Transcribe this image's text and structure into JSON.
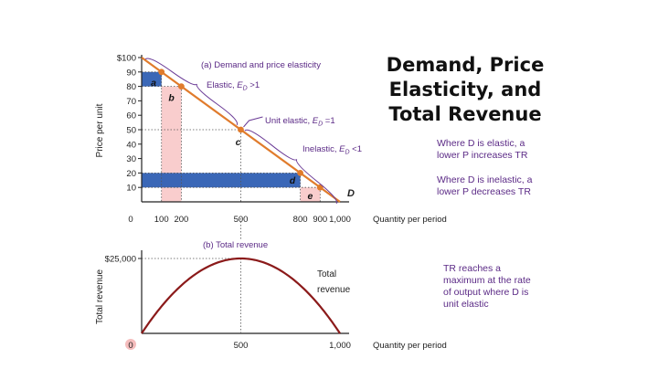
{
  "title_lines": [
    "Demand, Price",
    "Elasticity, and",
    "Total Revenue"
  ],
  "notes": {
    "elastic": [
      "Where D is elastic, a",
      "lower P increases TR"
    ],
    "inelastic": [
      "Where D is inelastic, a",
      "lower P decreases TR"
    ],
    "tr_max": [
      "TR reaches a",
      "maximum at the rate",
      "of output where D is",
      "unit elastic"
    ]
  },
  "colors": {
    "demand_line": "#e07b2c",
    "total_revenue_curve": "#8b1a1a",
    "revenue_rect_blue": "#2f5fb3",
    "revenue_rect_pink": "#f8c8c8",
    "annotation_text": "#5b2a86"
  },
  "chart_data": [
    {
      "type": "line",
      "title": "(a) Demand and price elasticity",
      "xlabel": "Quantity per period",
      "ylabel": "Price per unit",
      "xlim": [
        0,
        1000
      ],
      "ylim": [
        0,
        100
      ],
      "x_ticks": [
        {
          "v": 0,
          "label": "0"
        },
        {
          "v": 100,
          "label": "100"
        },
        {
          "v": 200,
          "label": "200"
        },
        {
          "v": 500,
          "label": "500"
        },
        {
          "v": 800,
          "label": "800"
        },
        {
          "v": 900,
          "label": "900"
        },
        {
          "v": 1000,
          "label": "1,000"
        }
      ],
      "y_ticks": [
        {
          "v": 100,
          "label": "$100"
        },
        {
          "v": 90,
          "label": "90"
        },
        {
          "v": 80,
          "label": "80"
        },
        {
          "v": 70,
          "label": "70"
        },
        {
          "v": 60,
          "label": "60"
        },
        {
          "v": 50,
          "label": "50"
        },
        {
          "v": 40,
          "label": "40"
        },
        {
          "v": 30,
          "label": "30"
        },
        {
          "v": 20,
          "label": "20"
        },
        {
          "v": 10,
          "label": "10"
        }
      ],
      "series": [
        {
          "name": "D",
          "x": [
            0,
            1000
          ],
          "y": [
            100,
            0
          ]
        }
      ],
      "points": [
        {
          "x": 100,
          "y": 90
        },
        {
          "x": 200,
          "y": 80
        },
        {
          "x": 500,
          "y": 50
        },
        {
          "x": 800,
          "y": 20
        },
        {
          "x": 900,
          "y": 10
        }
      ],
      "areas": [
        {
          "label": "a",
          "x0": 0,
          "x1": 100,
          "y0": 80,
          "y1": 90,
          "fill": "blue"
        },
        {
          "label": "b",
          "x0": 100,
          "x1": 200,
          "y0": 0,
          "y1": 80,
          "fill": "pink"
        },
        {
          "label": "d",
          "x0": 0,
          "x1": 800,
          "y0": 10,
          "y1": 20,
          "fill": "blue"
        },
        {
          "label": "e",
          "x0": 800,
          "x1": 900,
          "y0": 0,
          "y1": 10,
          "fill": "pink"
        }
      ],
      "point_label": {
        "label": "c",
        "x": 500,
        "y": 50
      },
      "annotations": {
        "elastic": {
          "prefix": "Elastic, ",
          "symbol": "E",
          "sub": "D",
          "suffix": " >1"
        },
        "unit_elastic": {
          "prefix": "Unit elastic, ",
          "symbol": "E",
          "sub": "D",
          "suffix": " =1"
        },
        "inelastic": {
          "prefix": "Inelastic, ",
          "symbol": "E",
          "sub": "D",
          "suffix": " <1"
        }
      }
    },
    {
      "type": "line",
      "title": "(b) Total revenue",
      "xlabel": "Quantity per period",
      "ylabel": "Total revenue",
      "xlim": [
        0,
        1000
      ],
      "ylim": [
        0,
        25000
      ],
      "x_ticks": [
        {
          "v": 0,
          "label": "0"
        },
        {
          "v": 500,
          "label": "500"
        },
        {
          "v": 1000,
          "label": "1,000"
        }
      ],
      "y_ticks": [
        {
          "v": 25000,
          "label": "$25,000"
        }
      ],
      "series": [
        {
          "name": "Total revenue",
          "x": [
            0,
            100,
            200,
            300,
            400,
            500,
            600,
            700,
            800,
            900,
            1000
          ],
          "y": [
            0,
            9000,
            16000,
            21000,
            24000,
            25000,
            24000,
            21000,
            16000,
            9000,
            0
          ]
        }
      ],
      "curve_label": [
        "Total",
        "revenue"
      ]
    }
  ]
}
